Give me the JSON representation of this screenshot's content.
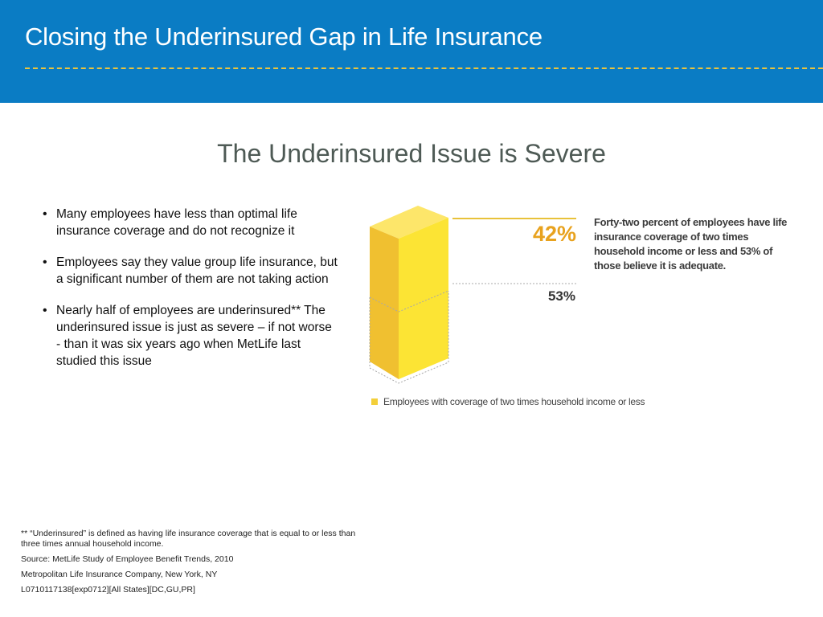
{
  "header": {
    "title": "Closing the Underinsured Gap in Life Insurance"
  },
  "subtitle": "The Underinsured Issue is Severe",
  "bullets": [
    "Many employees have less than optimal life insurance coverage and do not recognize it",
    "Employees say they value group life insurance, but a significant number of them are not taking action",
    "Nearly half of employees are underinsured** The underinsured issue is just as severe – if not worse - than it was six years ago when MetLife last studied this issue"
  ],
  "chart_data": {
    "type": "bar",
    "title": "",
    "series": [
      {
        "name": "Employees with coverage of two times household income or less",
        "value": 42,
        "label": "42%"
      }
    ],
    "sub_value": {
      "value": 53,
      "label": "53%"
    },
    "annotation": "Forty-two percent of employees have life insurance coverage of two times household income or less and 53% of those believe it is adequate.",
    "legend": "Employees with coverage of two times household income or less",
    "legend_position": "bottom",
    "colors": {
      "front": "#fce434",
      "side": "#f0c030",
      "top": "#fde66a",
      "accent": "#e8a21e"
    }
  },
  "footer": {
    "definition": "** “Underinsured” is defined as having life insurance coverage that is equal to or less than three times annual household income.",
    "source": "Source: MetLife Study of Employee Benefit Trends, 2010",
    "company": "Metropolitan Life Insurance Company, New York, NY",
    "code": "L0710117138[exp0712][All States][DC,GU,PR]"
  }
}
